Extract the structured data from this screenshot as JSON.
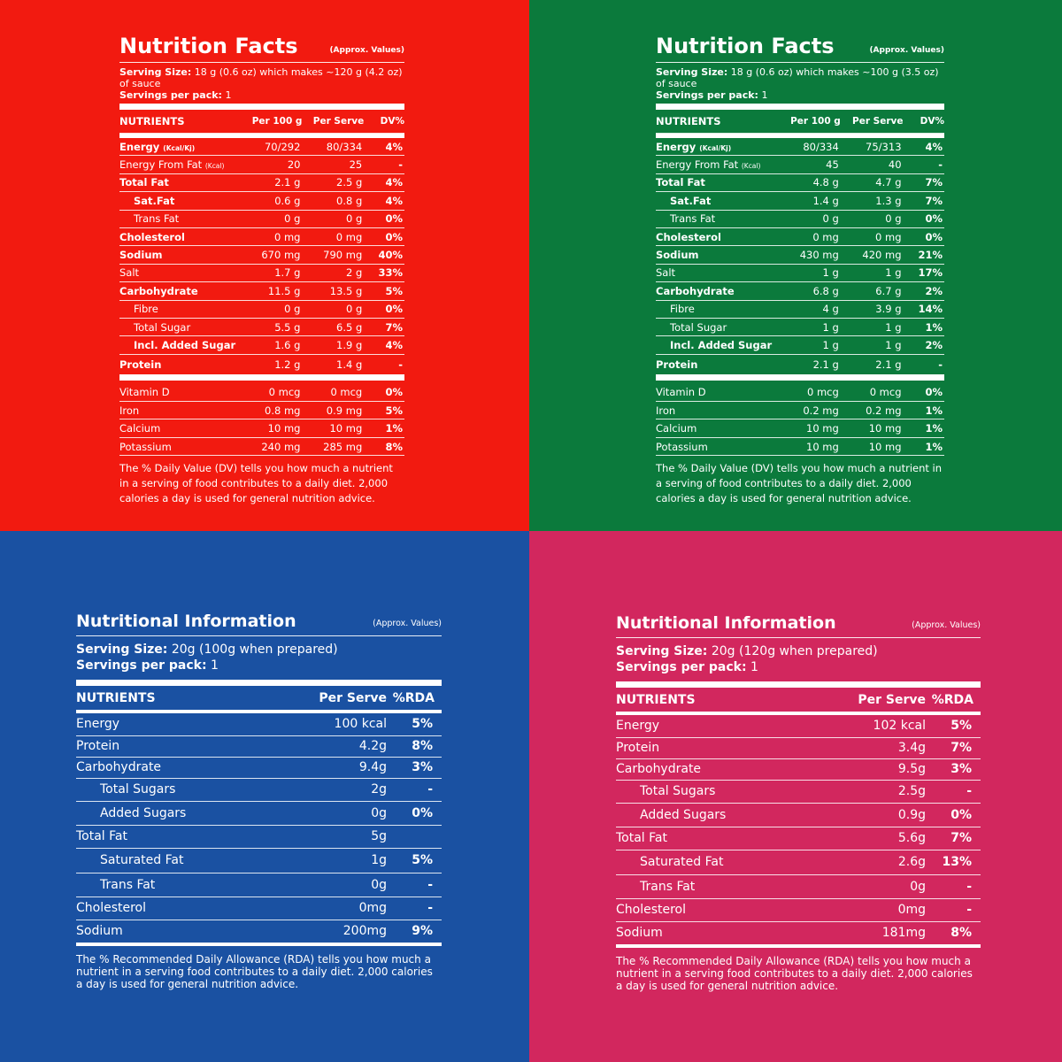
{
  "panels_a": [
    {
      "title": "Nutrition Facts",
      "approx": "(Approx. Values)",
      "serving_label": "Serving Size:",
      "serving_value": " 18 g (0.6 oz) which makes ~120 g (4.2 oz) of sauce",
      "servings_label": "Servings per pack:",
      "servings_value": " 1",
      "headers": {
        "nutrients": "NUTRIENTS",
        "per100": "Per 100 g",
        "perserve": "Per Serve",
        "dv": "DV%"
      },
      "rows": [
        {
          "name": "Energy",
          "unit": "(Kcal/Kj)",
          "p100": "70/292",
          "serve": "80/334",
          "dv": "4%"
        },
        {
          "name": "Energy From Fat",
          "unit": "(Kcal)",
          "p100": "20",
          "serve": "25",
          "dv": "-"
        },
        {
          "name": "Total Fat",
          "p100": "2.1 g",
          "serve": "2.5 g",
          "dv": "4%"
        },
        {
          "name": "Sat.Fat",
          "p100": "0.6 g",
          "serve": "0.8 g",
          "dv": "4%"
        },
        {
          "name": "Trans Fat",
          "p100": "0 g",
          "serve": "0 g",
          "dv": "0%"
        },
        {
          "name": "Cholesterol",
          "p100": "0 mg",
          "serve": "0 mg",
          "dv": "0%"
        },
        {
          "name": "Sodium",
          "p100": "670 mg",
          "serve": "790 mg",
          "dv": "40%"
        },
        {
          "name": "Salt",
          "p100": "1.7 g",
          "serve": "2 g",
          "dv": "33%"
        },
        {
          "name": "Carbohydrate",
          "p100": "11.5 g",
          "serve": "13.5 g",
          "dv": "5%"
        },
        {
          "name": "Fibre",
          "p100": "0 g",
          "serve": "0 g",
          "dv": "0%"
        },
        {
          "name": "Total Sugar",
          "p100": "5.5 g",
          "serve": "6.5 g",
          "dv": "7%"
        },
        {
          "name": "Incl. Added Sugar",
          "p100": "1.6 g",
          "serve": "1.9 g",
          "dv": "4%"
        },
        {
          "name": "Protein",
          "p100": "1.2 g",
          "serve": "1.4 g",
          "dv": "-"
        }
      ],
      "vitamins": [
        {
          "name": "Vitamin D",
          "p100": "0 mcg",
          "serve": "0 mcg",
          "dv": "0%"
        },
        {
          "name": "Iron",
          "p100": "0.8 mg",
          "serve": "0.9 mg",
          "dv": "5%"
        },
        {
          "name": "Calcium",
          "p100": "10 mg",
          "serve": "10 mg",
          "dv": "1%"
        },
        {
          "name": "Potassium",
          "p100": "240 mg",
          "serve": "285 mg",
          "dv": "8%"
        }
      ],
      "note": "The % Daily Value (DV) tells you how much a nutrient in a serving of food contributes to a daily diet. 2,000 calories a day is used for general nutrition advice."
    },
    {
      "title": "Nutrition Facts",
      "approx": "(Approx. Values)",
      "serving_label": "Serving Size:",
      "serving_value": " 18 g (0.6 oz) which makes ~100 g (3.5 oz) of sauce",
      "servings_label": "Servings per pack:",
      "servings_value": " 1",
      "headers": {
        "nutrients": "NUTRIENTS",
        "per100": "Per 100 g",
        "perserve": "Per Serve",
        "dv": "DV%"
      },
      "rows": [
        {
          "name": "Energy",
          "unit": "(Kcal/Kj)",
          "p100": "80/334",
          "serve": "75/313",
          "dv": "4%"
        },
        {
          "name": "Energy From Fat",
          "unit": "(Kcal)",
          "p100": "45",
          "serve": "40",
          "dv": "-"
        },
        {
          "name": "Total Fat",
          "p100": "4.8 g",
          "serve": "4.7 g",
          "dv": "7%"
        },
        {
          "name": "Sat.Fat",
          "p100": "1.4 g",
          "serve": "1.3 g",
          "dv": "7%"
        },
        {
          "name": "Trans Fat",
          "p100": "0 g",
          "serve": "0 g",
          "dv": "0%"
        },
        {
          "name": "Cholesterol",
          "p100": "0 mg",
          "serve": "0 mg",
          "dv": "0%"
        },
        {
          "name": "Sodium",
          "p100": "430 mg",
          "serve": "420 mg",
          "dv": "21%"
        },
        {
          "name": "Salt",
          "p100": "1 g",
          "serve": "1 g",
          "dv": "17%"
        },
        {
          "name": "Carbohydrate",
          "p100": "6.8 g",
          "serve": "6.7 g",
          "dv": "2%"
        },
        {
          "name": "Fibre",
          "p100": "4 g",
          "serve": "3.9 g",
          "dv": "14%"
        },
        {
          "name": "Total Sugar",
          "p100": "1 g",
          "serve": "1 g",
          "dv": "1%"
        },
        {
          "name": "Incl. Added Sugar",
          "p100": "1 g",
          "serve": "1 g",
          "dv": "2%"
        },
        {
          "name": "Protein",
          "p100": "2.1 g",
          "serve": "2.1 g",
          "dv": "-"
        }
      ],
      "vitamins": [
        {
          "name": "Vitamin D",
          "p100": "0 mcg",
          "serve": "0 mcg",
          "dv": "0%"
        },
        {
          "name": "Iron",
          "p100": "0.2 mg",
          "serve": "0.2 mg",
          "dv": "1%"
        },
        {
          "name": "Calcium",
          "p100": "10 mg",
          "serve": "10 mg",
          "dv": "1%"
        },
        {
          "name": "Potassium",
          "p100": "10 mg",
          "serve": "10 mg",
          "dv": "1%"
        }
      ],
      "note": "The % Daily Value (DV) tells you how much a nutrient in a serving of food contributes to a daily diet. 2,000 calories a day is used for general nutrition advice."
    }
  ],
  "panels_b": [
    {
      "title": "Nutritional Information",
      "approx": "(Approx. Values)",
      "serving_label": "Serving Size:",
      "serving_value": " 20g (100g when prepared)",
      "servings_label": "Servings per pack:",
      "servings_value": " 1",
      "headers": {
        "nutrients": "NUTRIENTS",
        "perserve": "Per Serve",
        "rda": "%RDA"
      },
      "rows": [
        {
          "name": "Energy",
          "serve": "100 kcal",
          "rda": "5%"
        },
        {
          "name": "Protein",
          "serve": "4.2g",
          "rda": "8%"
        },
        {
          "name": "Carbohydrate",
          "serve": "9.4g",
          "rda": "3%"
        },
        {
          "name": "Total Sugars",
          "serve": "2g",
          "rda": "-"
        },
        {
          "name": "Added Sugars",
          "serve": "0g",
          "rda": "0%"
        },
        {
          "name": "Total Fat",
          "serve": "5g",
          "rda": ""
        },
        {
          "name": "Saturated Fat",
          "serve": "1g",
          "rda": "5%"
        },
        {
          "name": "Trans Fat",
          "serve": "0g",
          "rda": "-"
        },
        {
          "name": "Cholesterol",
          "serve": "0mg",
          "rda": "-"
        },
        {
          "name": "Sodium",
          "serve": "200mg",
          "rda": "9%"
        }
      ],
      "note": "The % Recommended Daily Allowance (RDA) tells you how much a nutrient in a serving food contributes to a daily diet. 2,000 calories a day is used for general nutrition advice."
    },
    {
      "title": "Nutritional Information",
      "approx": "(Approx. Values)",
      "serving_label": "Serving Size:",
      "serving_value": " 20g (120g when prepared)",
      "servings_label": "Servings per pack:",
      "servings_value": " 1",
      "headers": {
        "nutrients": "NUTRIENTS",
        "perserve": "Per Serve",
        "rda": "%RDA"
      },
      "rows": [
        {
          "name": "Energy",
          "serve": "102 kcal",
          "rda": "5%"
        },
        {
          "name": "Protein",
          "serve": "3.4g",
          "rda": "7%"
        },
        {
          "name": "Carbohydrate",
          "serve": "9.5g",
          "rda": "3%"
        },
        {
          "name": "Total Sugars",
          "serve": "2.5g",
          "rda": "-"
        },
        {
          "name": "Added Sugars",
          "serve": "0.9g",
          "rda": "0%"
        },
        {
          "name": "Total Fat",
          "serve": "5.6g",
          "rda": "7%"
        },
        {
          "name": "Saturated Fat",
          "serve": "2.6g",
          "rda": "13%"
        },
        {
          "name": "Trans Fat",
          "serve": "0g",
          "rda": "-"
        },
        {
          "name": "Cholesterol",
          "serve": "0mg",
          "rda": "-"
        },
        {
          "name": "Sodium",
          "serve": "181mg",
          "rda": "8%"
        }
      ],
      "note": "The % Recommended Daily Allowance (RDA) tells you how much a nutrient in a serving food contributes to a daily diet. 2,000 calories a day is used for general nutrition advice."
    }
  ],
  "colors": {
    "red": "#f21a10",
    "green": "#0b7a3c",
    "blue": "#1a51a2",
    "pink": "#d2275e"
  }
}
